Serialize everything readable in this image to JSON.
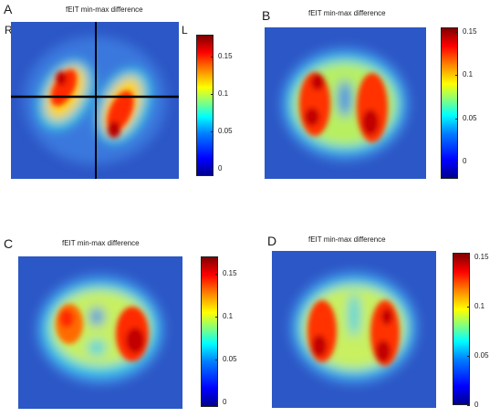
{
  "panels": [
    {
      "letter": "A",
      "title": "fEIT min-max difference",
      "side_labels": {
        "right": "R",
        "left": "L"
      },
      "colorbar": {
        "ticks": [
          "0.15",
          "0.1",
          "0.05",
          "0"
        ],
        "values": [
          0.15,
          0.1,
          0.05,
          0
        ],
        "min": -0.01,
        "max": 0.18
      },
      "crosshair": true
    },
    {
      "letter": "B",
      "title": "fEIT min-max difference",
      "colorbar": {
        "ticks": [
          "0.15",
          "0.1",
          "0.05",
          "0"
        ],
        "values": [
          0.15,
          0.1,
          0.05,
          0
        ],
        "min": -0.02,
        "max": 0.155
      }
    },
    {
      "letter": "C",
      "title": "fEIT min-max difference",
      "colorbar": {
        "ticks": [
          "0.15",
          "0.1",
          "0.05",
          "0"
        ],
        "values": [
          0.15,
          0.1,
          0.05,
          0
        ],
        "min": -0.005,
        "max": 0.17
      }
    },
    {
      "letter": "D",
      "title": "fEIT min-max difference",
      "colorbar": {
        "ticks": [
          "0.15",
          "0.1",
          "0.05",
          "0"
        ],
        "values": [
          0.15,
          0.1,
          0.05,
          0
        ],
        "min": 0,
        "max": 0.155
      }
    }
  ],
  "colors": {
    "background_map": "#2f5fcf",
    "low": "#00008f",
    "high": "#800000"
  }
}
